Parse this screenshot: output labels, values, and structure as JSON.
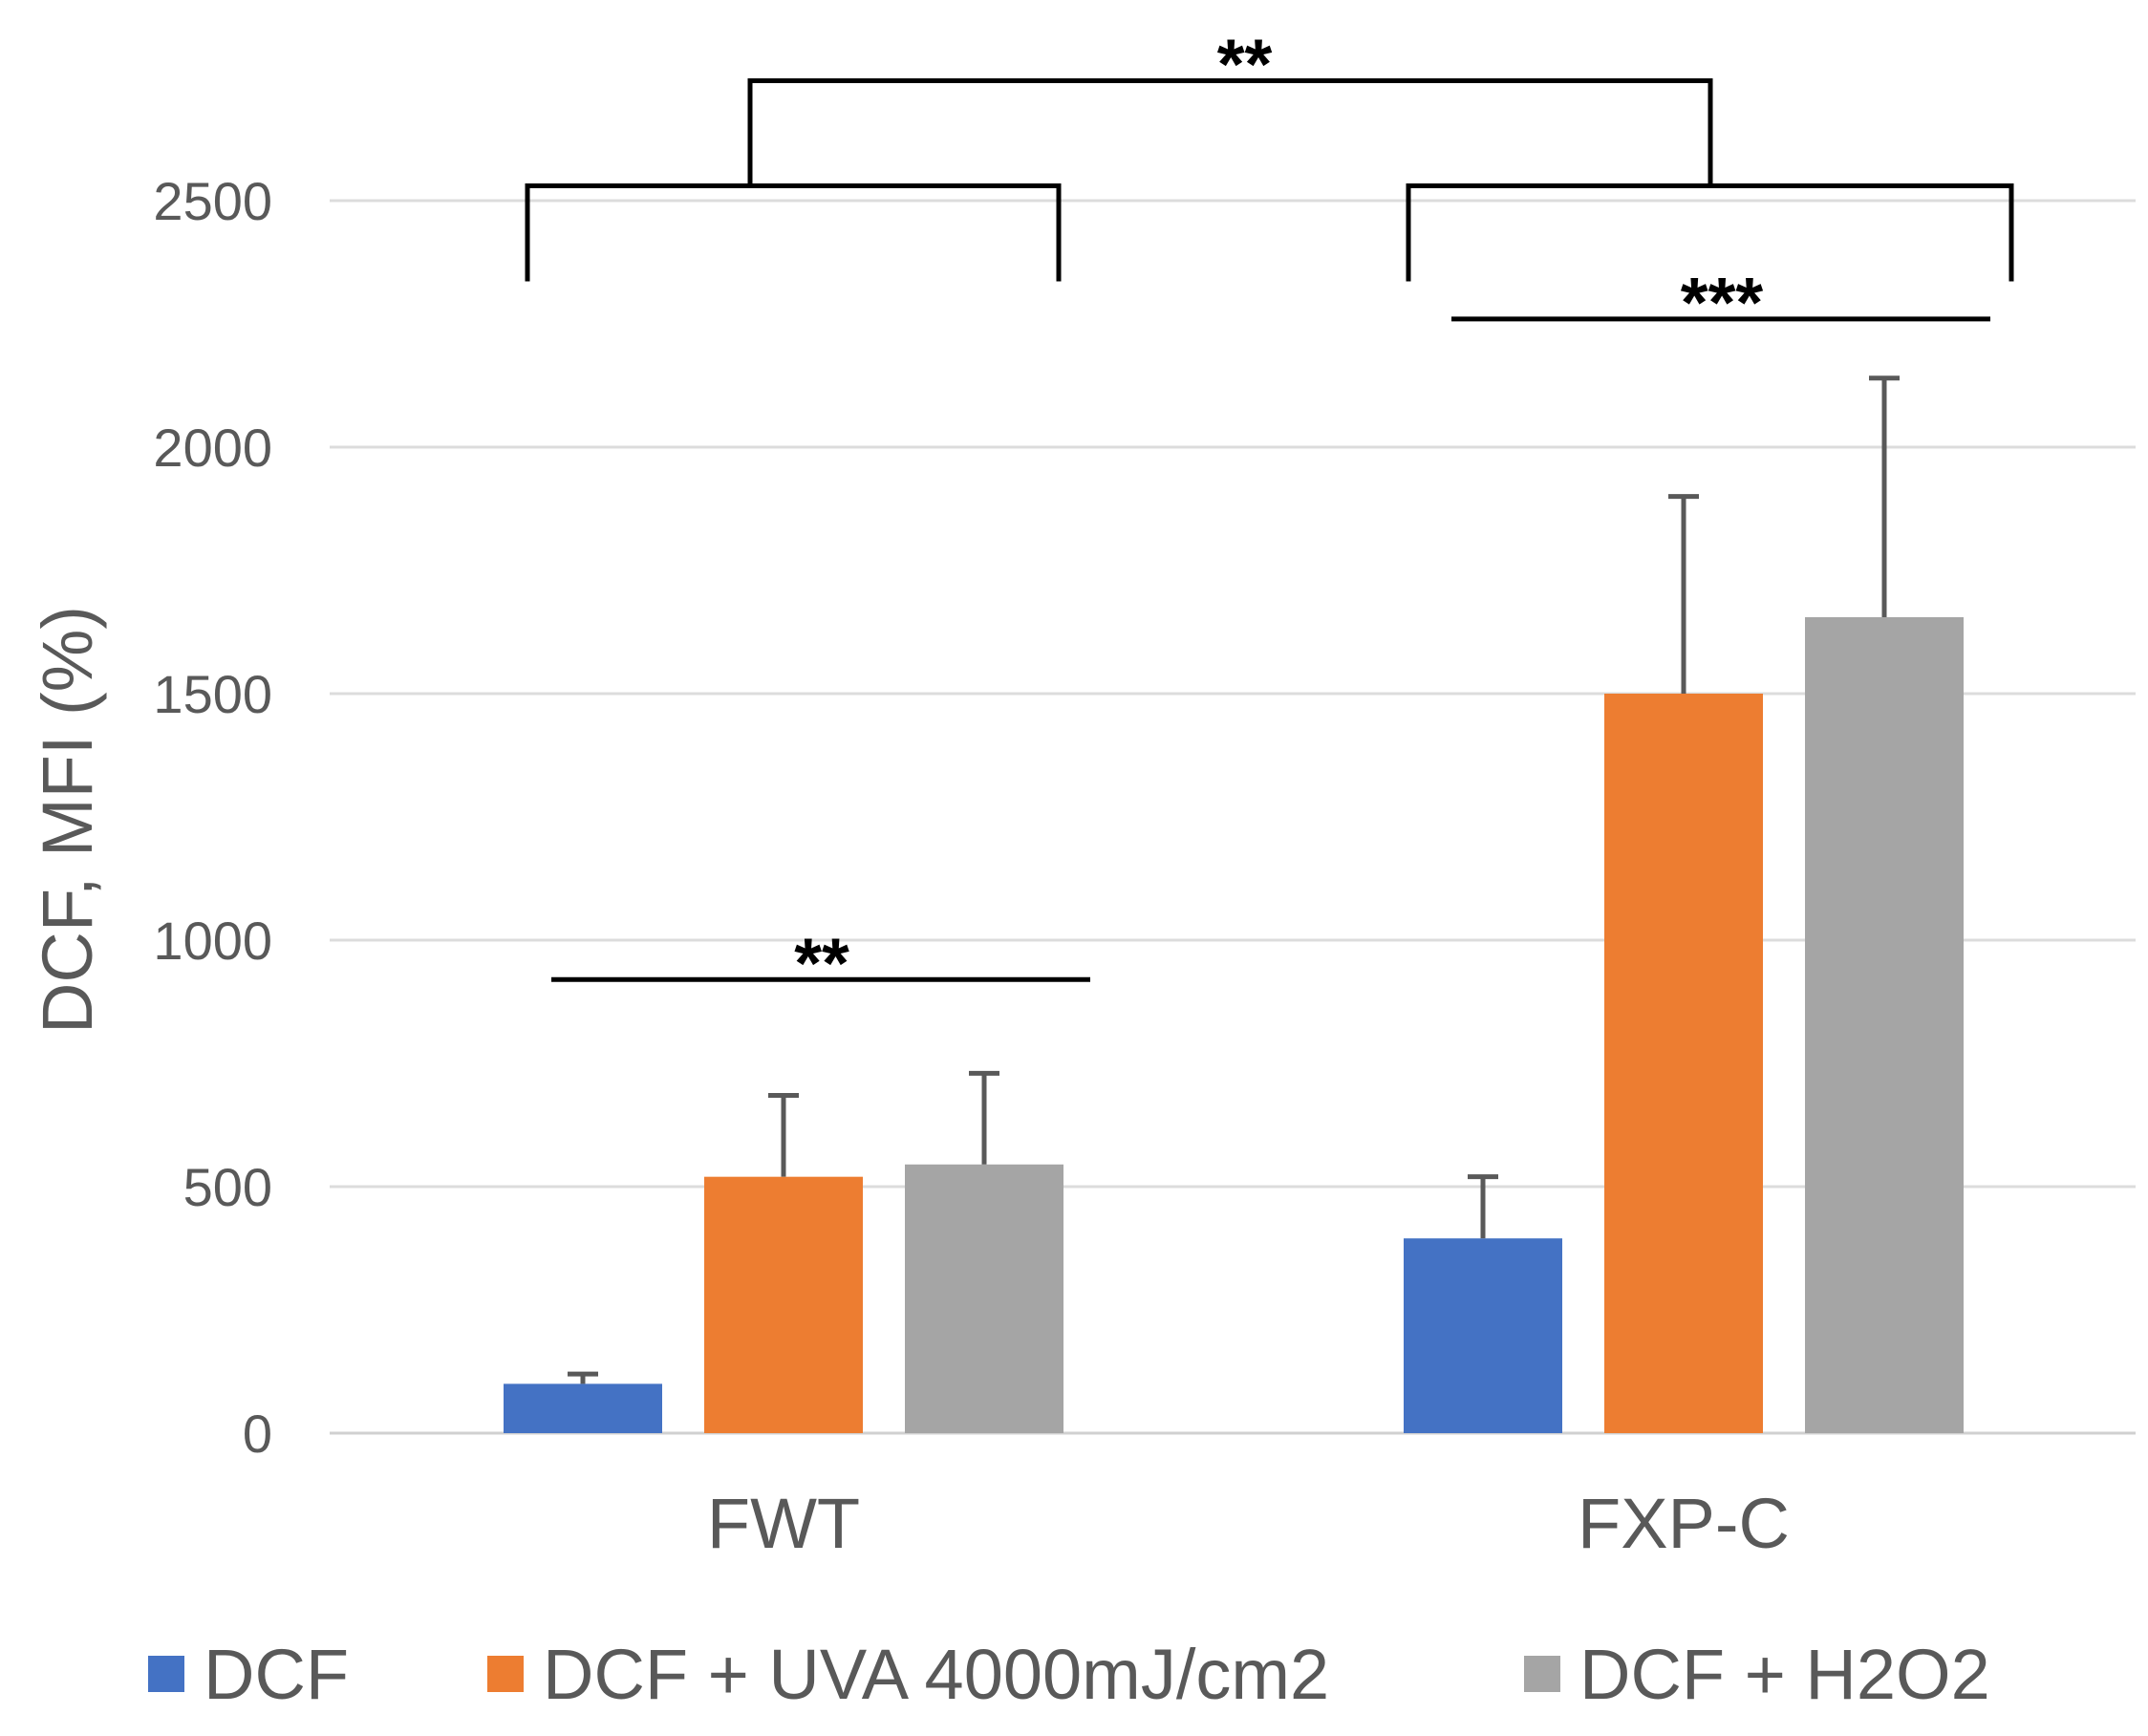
{
  "chart_data": {
    "type": "bar",
    "title": "",
    "xlabel": "",
    "ylabel": "DCF, MFI (%)",
    "ylim": [
      0,
      2500
    ],
    "yticks": [
      0,
      500,
      1000,
      1500,
      2000,
      2500
    ],
    "grid": true,
    "legend_position": "bottom",
    "categories": [
      "FWT",
      "FXP-C"
    ],
    "series": [
      {
        "name": "DCF",
        "color": "#4472c4",
        "values": [
          100,
          395
        ],
        "errors": [
          20,
          125
        ]
      },
      {
        "name": "DCF + UVA 4000mJ/cm2",
        "color": "#ed7d31",
        "values": [
          520,
          1500
        ],
        "errors": [
          165,
          400
        ]
      },
      {
        "name": "DCF + H2O2",
        "color": "#a5a5a5",
        "values": [
          545,
          1655
        ],
        "errors": [
          185,
          485
        ]
      }
    ],
    "annotations": [
      {
        "label": "**",
        "type": "line",
        "group": 0,
        "level": 920
      },
      {
        "label": "***",
        "type": "line",
        "group": 1,
        "level": 2260
      },
      {
        "label": "**",
        "type": "bracket",
        "level": 2530
      }
    ]
  }
}
